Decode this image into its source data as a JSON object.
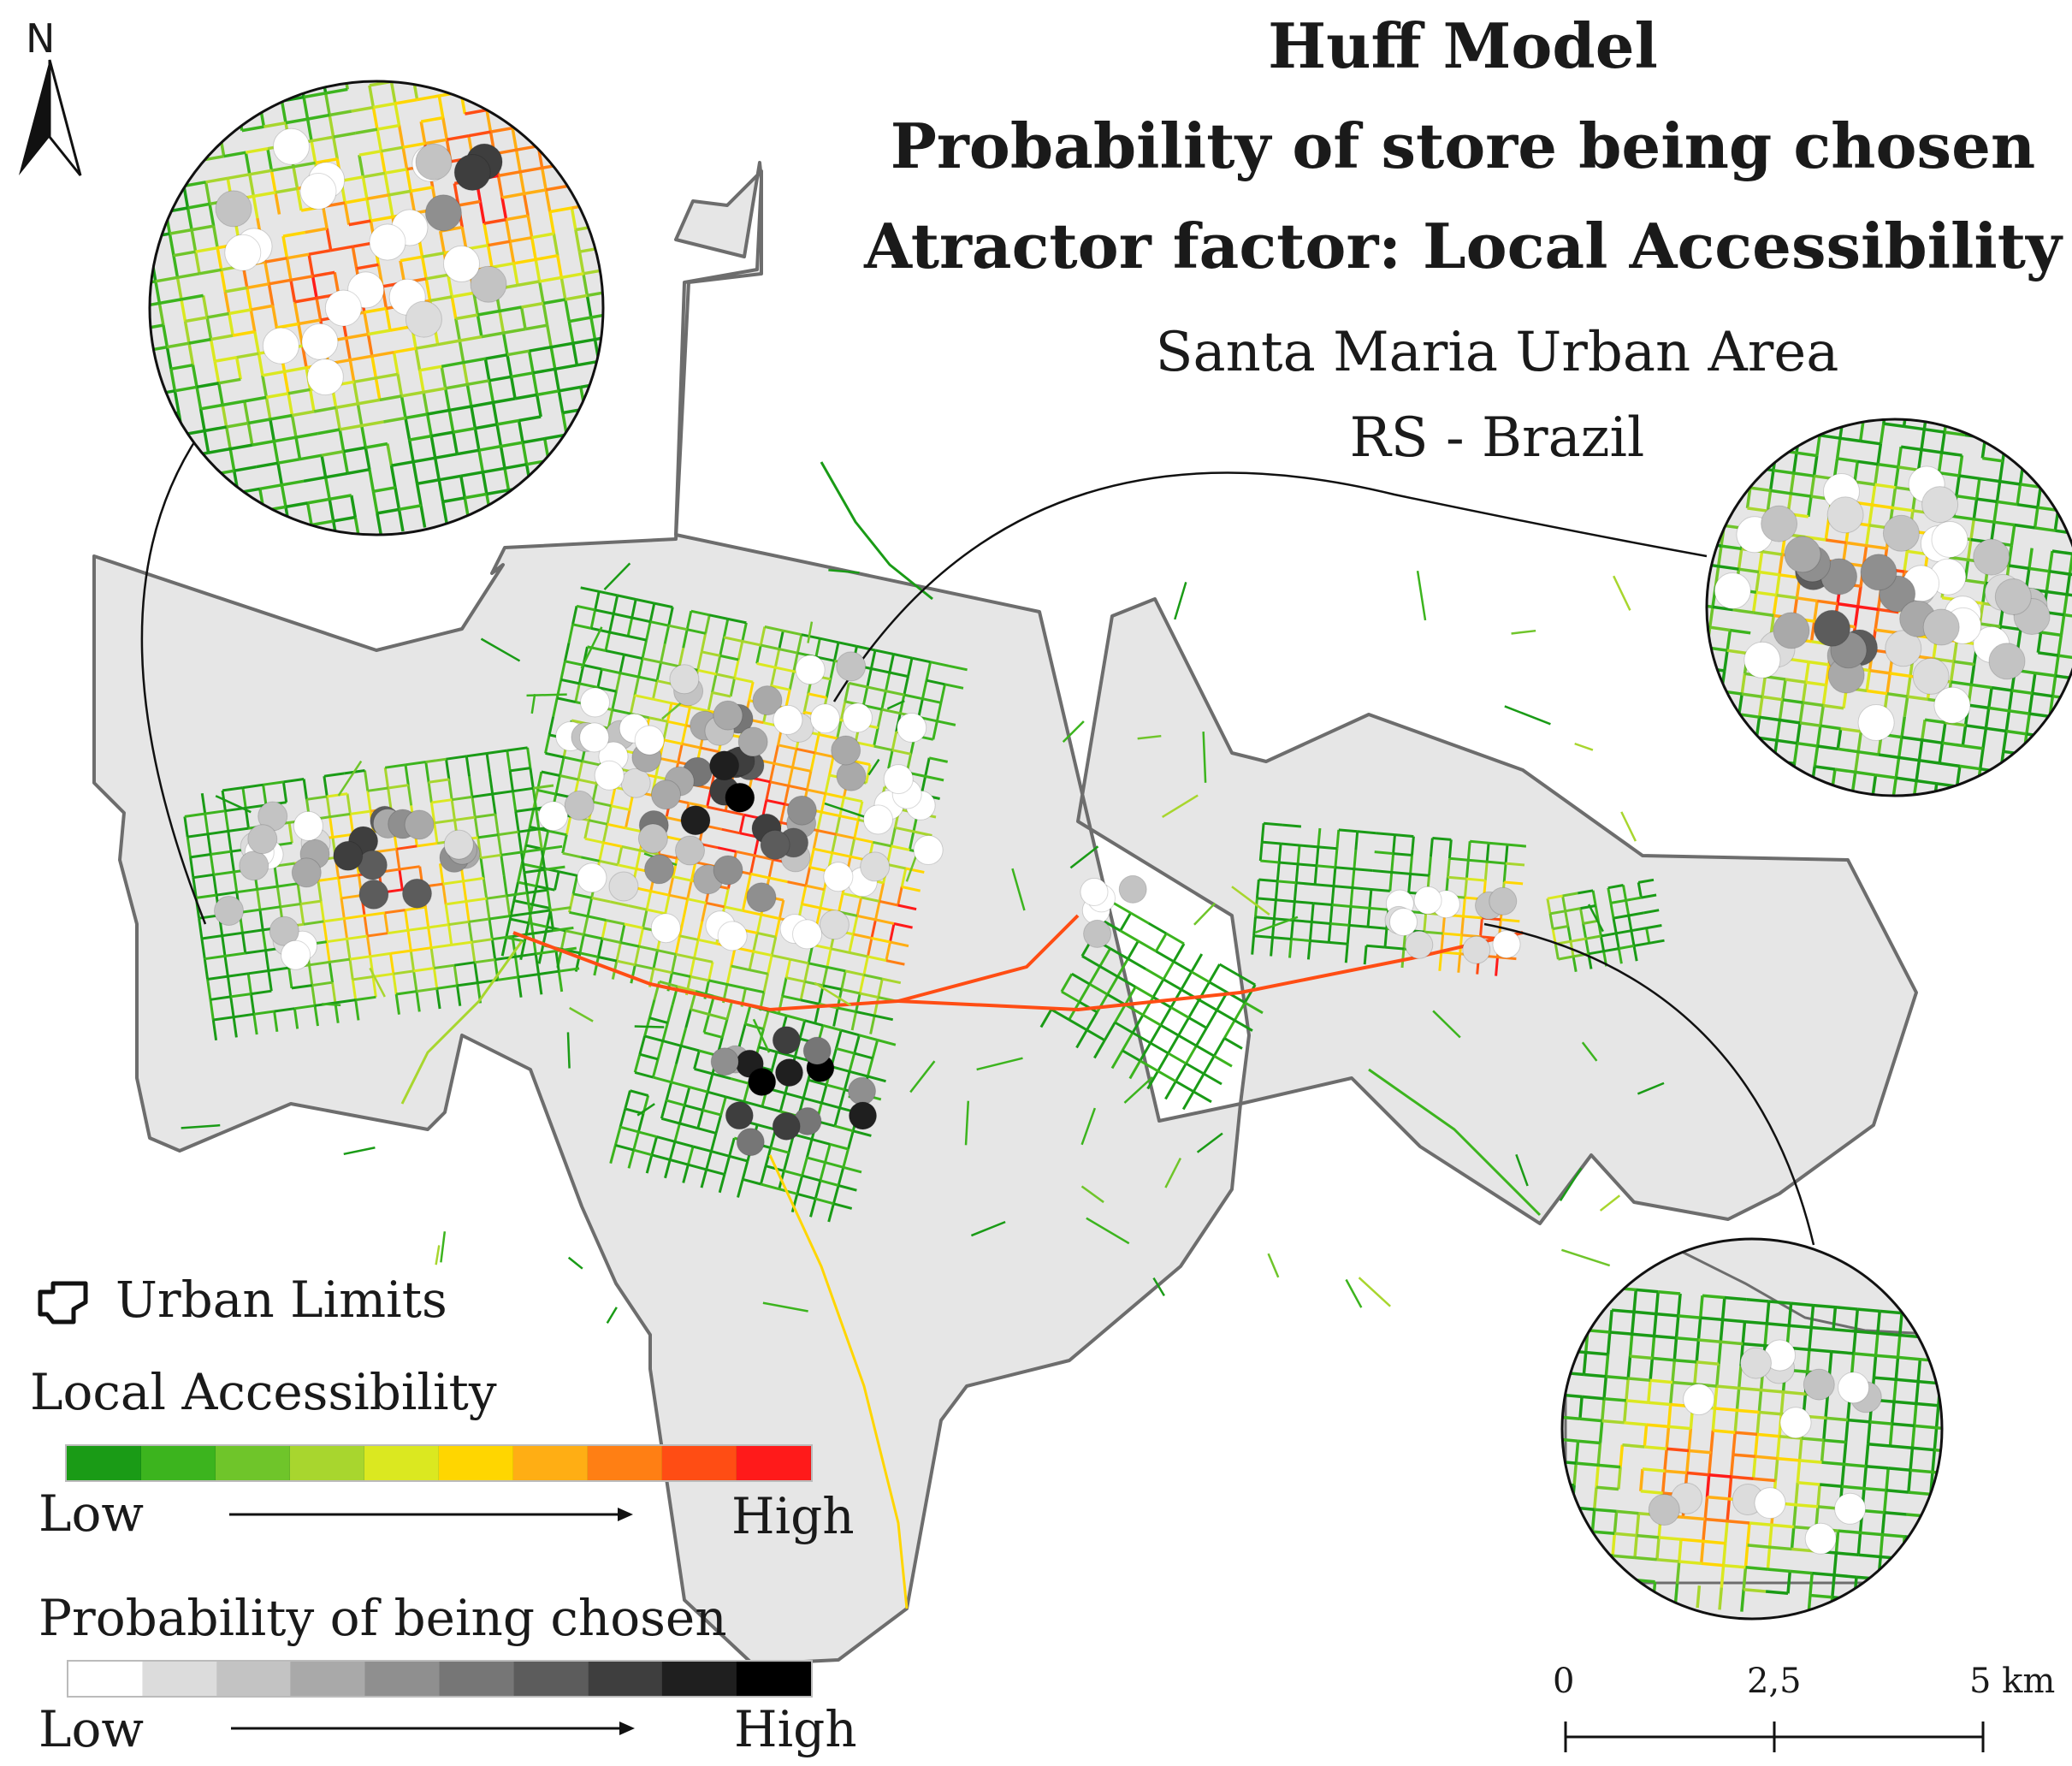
{
  "title": {
    "line1": "Huff Model",
    "line2": "Probability of store being chosen",
    "line3": "Atractor factor: Local Accessibility"
  },
  "subtitle": {
    "line1": "Santa Maria Urban Area",
    "line2": "RS - Brazil"
  },
  "north_arrow": {
    "label": "N",
    "icon": "north-arrow-icon"
  },
  "legend": {
    "urban_limits": {
      "label": "Urban Limits",
      "icon": "urban-limits-outline-icon"
    },
    "accessibility": {
      "title": "Local Accessibility",
      "low": "Low",
      "high": "High",
      "colors": [
        "#1a9b16",
        "#3cb41e",
        "#6fc52a",
        "#a8d62e",
        "#dbe820",
        "#ffd600",
        "#ffae14",
        "#ff7f14",
        "#ff4d14",
        "#ff1a1a"
      ]
    },
    "probability": {
      "title": "Probability of being chosen",
      "low": "Low",
      "high": "High",
      "colors": [
        "#ffffff",
        "#dcdcdc",
        "#c3c3c3",
        "#a9a9a9",
        "#8f8f8f",
        "#767676",
        "#5c5c5c",
        "#3e3e3e",
        "#1f1f1f",
        "#000000"
      ]
    }
  },
  "scale_bar": {
    "labels": [
      "0",
      "2,5",
      "5 km"
    ]
  },
  "colors": {
    "urban_area_fill": "#e6e6e6",
    "urban_area_stroke": "#6d6d6d"
  }
}
